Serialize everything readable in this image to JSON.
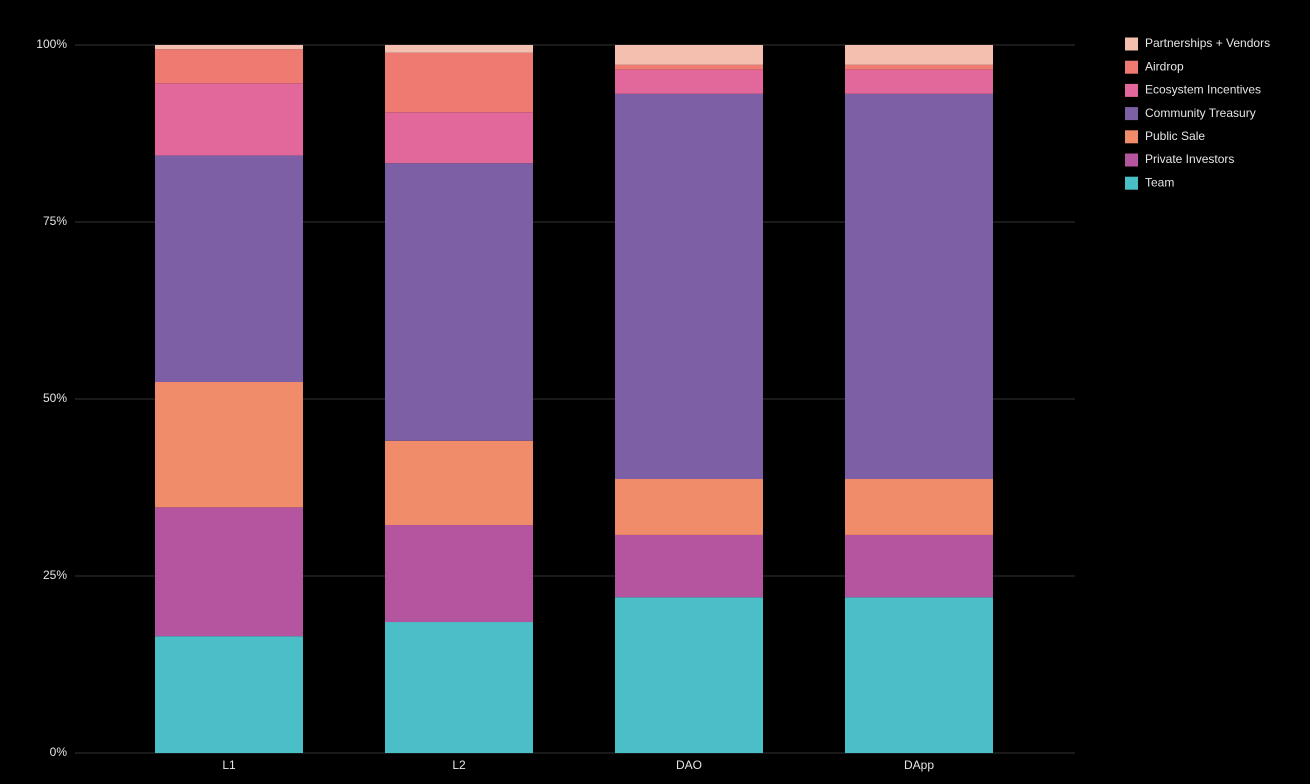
{
  "chart_data": {
    "type": "stacked-bar",
    "categories": [
      "L1",
      "L2",
      "DAO",
      "DApp"
    ],
    "series": [
      {
        "name": "Team",
        "color": "#4bbfc8",
        "values": [
          16.5,
          18.5,
          22.0,
          22.0
        ]
      },
      {
        "name": "Private Investors",
        "color": "#b5559f",
        "values": [
          18.2,
          13.7,
          8.8,
          8.8
        ]
      },
      {
        "name": "Public Sale",
        "color": "#f08c6a",
        "values": [
          17.7,
          11.9,
          7.9,
          7.9
        ]
      },
      {
        "name": "Community Treasury",
        "color": "#7d5fa6",
        "values": [
          32.0,
          39.2,
          54.4,
          54.4
        ]
      },
      {
        "name": "Ecosystem Incentives",
        "color": "#e2679a",
        "values": [
          10.2,
          7.2,
          3.4,
          3.4
        ]
      },
      {
        "name": "Airdrop",
        "color": "#ef7a72",
        "values": [
          4.8,
          8.4,
          0.7,
          0.7
        ]
      },
      {
        "name": "Partnerships + Vendors",
        "color": "#f4bfae",
        "values": [
          0.6,
          1.1,
          2.8,
          2.8
        ]
      }
    ],
    "ylim": [
      0,
      100
    ],
    "yticks": [
      {
        "value": 0,
        "label": "0%"
      },
      {
        "value": 25,
        "label": "25%"
      },
      {
        "value": 50,
        "label": "50%"
      },
      {
        "value": 75,
        "label": "75%"
      },
      {
        "value": 100,
        "label": "100%"
      }
    ],
    "grid": true,
    "legend": "top-right"
  }
}
